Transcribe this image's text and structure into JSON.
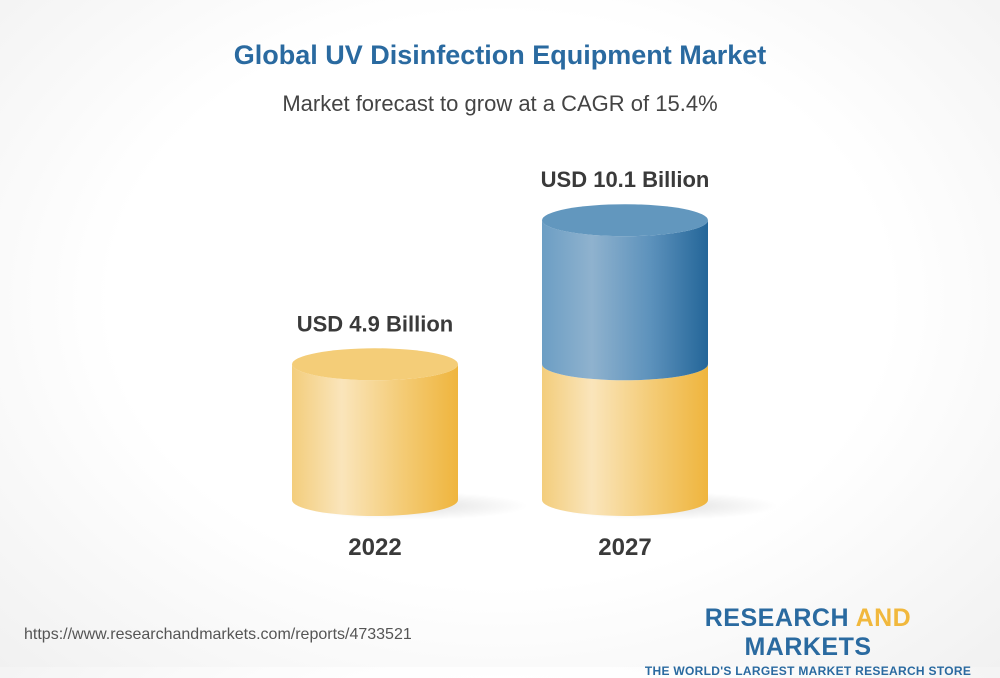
{
  "title": "Global UV Disinfection Equipment Market",
  "subtitle": "Market forecast to grow at a CAGR of 15.4%",
  "chart_data": {
    "type": "bar",
    "style": "3d-cylinder",
    "categories": [
      "2022",
      "2027"
    ],
    "values": [
      4.9,
      10.1
    ],
    "value_labels": [
      "USD 4.9 Billion",
      "USD 10.1 Billion"
    ],
    "unit": "USD Billion",
    "cagr": "15.4%",
    "colors": {
      "base": "#f1b83d",
      "growth": "#2a6aa0"
    },
    "grid": false
  },
  "footer": {
    "url": "https://www.researchandmarkets.com/reports/4733521",
    "logo_part1": "RESEARCH ",
    "logo_part2": "AND",
    "logo_part3": " MARKETS",
    "logo_tagline": "THE WORLD'S LARGEST MARKET RESEARCH STORE"
  }
}
